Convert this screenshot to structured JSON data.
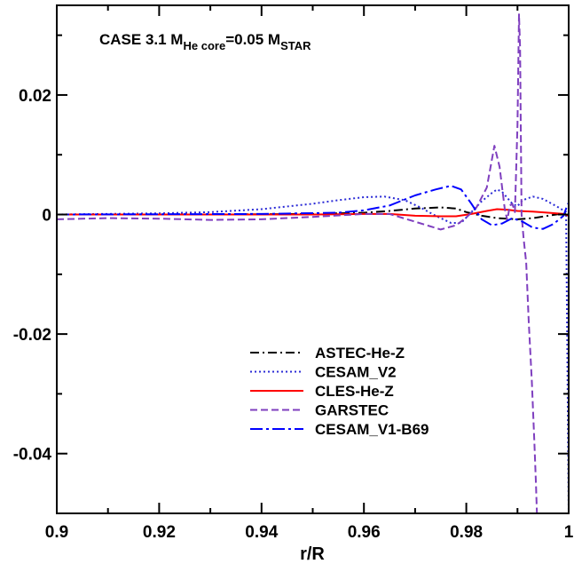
{
  "chart_data": {
    "type": "line",
    "title": {
      "prefix": "CASE 3.1 M",
      "sub1": "He core",
      "mid": "=0.05 M",
      "sub2": "STAR"
    },
    "xlabel": "r/R",
    "ylabel": "",
    "xlim": [
      0.9,
      1.0
    ],
    "ylim": [
      -0.05,
      0.035
    ],
    "x_ticks": [
      0.9,
      0.92,
      0.94,
      0.96,
      0.98,
      1.0
    ],
    "x_tick_labels": [
      "0.9",
      "0.92",
      "0.94",
      "0.96",
      "0.98",
      "1"
    ],
    "y_ticks": [
      -0.04,
      -0.02,
      0,
      0.02
    ],
    "y_tick_labels": [
      "-0.04",
      "-0.02",
      "0",
      "0.02"
    ],
    "legend_position": "lower-center",
    "series": [
      {
        "name": "ASTEC-He-Z",
        "color": "#000000",
        "dash": "dash-dot",
        "points": [
          [
            0.9,
            0
          ],
          [
            0.93,
            0
          ],
          [
            0.95,
            0.0001
          ],
          [
            0.96,
            0.0003
          ],
          [
            0.965,
            0.0006
          ],
          [
            0.97,
            0.001
          ],
          [
            0.975,
            0.0012
          ],
          [
            0.978,
            0.001
          ],
          [
            0.98,
            0.0004
          ],
          [
            0.983,
            -0.0002
          ],
          [
            0.986,
            -0.0006
          ],
          [
            0.99,
            -0.0008
          ],
          [
            0.993,
            -0.0006
          ],
          [
            0.996,
            -0.0002
          ],
          [
            0.999,
            0.0002
          ],
          [
            1.0,
            0.0003
          ]
        ]
      },
      {
        "name": "CESAM_V2",
        "color": "#2b2bd6",
        "dash": "dotted",
        "points": [
          [
            0.9,
            0
          ],
          [
            0.92,
            0.0002
          ],
          [
            0.93,
            0.0004
          ],
          [
            0.94,
            0.0009
          ],
          [
            0.95,
            0.0018
          ],
          [
            0.955,
            0.0024
          ],
          [
            0.96,
            0.0029
          ],
          [
            0.964,
            0.003
          ],
          [
            0.968,
            0.0024
          ],
          [
            0.971,
            0.0012
          ],
          [
            0.974,
            -0.0002
          ],
          [
            0.977,
            -0.0014
          ],
          [
            0.979,
            -0.0014
          ],
          [
            0.981,
            0.0004
          ],
          [
            0.983,
            0.0022
          ],
          [
            0.985,
            0.0036
          ],
          [
            0.986,
            0.0042
          ],
          [
            0.987,
            0.0038
          ],
          [
            0.989,
            0.0018
          ],
          [
            0.99,
            0.0014
          ],
          [
            0.991,
            0.0024
          ],
          [
            0.993,
            0.003
          ],
          [
            0.995,
            0.0026
          ],
          [
            0.998,
            0.0012
          ],
          [
            0.9995,
            0.0004
          ],
          [
            1.0,
            -0.05
          ]
        ]
      },
      {
        "name": "CLES-He-Z",
        "color": "#ff0000",
        "dash": "solid",
        "points": [
          [
            0.9,
            0
          ],
          [
            0.93,
            0
          ],
          [
            0.95,
            0
          ],
          [
            0.96,
            0.0001
          ],
          [
            0.965,
            0.0001
          ],
          [
            0.97,
            -0.0002
          ],
          [
            0.975,
            -0.0003
          ],
          [
            0.978,
            -0.0003
          ],
          [
            0.981,
            0.0001
          ],
          [
            0.984,
            0.0006
          ],
          [
            0.986,
            0.0009
          ],
          [
            0.988,
            0.0008
          ],
          [
            0.99,
            0.0006
          ],
          [
            0.993,
            0.0005
          ],
          [
            0.996,
            0.0003
          ],
          [
            0.999,
            0.0001
          ],
          [
            1.0,
            -0.0002
          ]
        ]
      },
      {
        "name": "GARSTEC",
        "color": "#7f3fbf",
        "dash": "dashed",
        "points": [
          [
            0.9,
            -0.0008
          ],
          [
            0.91,
            -0.0006
          ],
          [
            0.92,
            -0.0007
          ],
          [
            0.93,
            -0.0009
          ],
          [
            0.94,
            -0.0008
          ],
          [
            0.95,
            -0.0004
          ],
          [
            0.96,
            0.0001
          ],
          [
            0.965,
            0.0001
          ],
          [
            0.97,
            -0.0012
          ],
          [
            0.975,
            -0.0025
          ],
          [
            0.978,
            -0.0018
          ],
          [
            0.98,
            -0.0005
          ],
          [
            0.982,
            0.0012
          ],
          [
            0.984,
            0.0045
          ],
          [
            0.9855,
            0.0115
          ],
          [
            0.9865,
            0.008
          ],
          [
            0.9875,
            0.001
          ],
          [
            0.988,
            -0.001
          ],
          [
            0.9885,
            0.0015
          ],
          [
            0.989,
            0.0018
          ],
          [
            0.9895,
            0.0004
          ],
          [
            0.99,
            0.015
          ],
          [
            0.9903,
            0.0335
          ],
          [
            0.9905,
            0.028
          ],
          [
            0.9908,
            0.0
          ],
          [
            0.9912,
            -0.004
          ],
          [
            0.9917,
            -0.008
          ],
          [
            0.9922,
            -0.018
          ],
          [
            0.9928,
            -0.028
          ],
          [
            0.9933,
            -0.038
          ],
          [
            0.9936,
            -0.045
          ],
          [
            0.9938,
            -0.05
          ]
        ]
      },
      {
        "name": "CESAM_V1-B69",
        "color": "#0000ff",
        "dash": "long-dash-dot",
        "points": [
          [
            0.9,
            0
          ],
          [
            0.94,
            0.0001
          ],
          [
            0.955,
            0.0003
          ],
          [
            0.96,
            0.0007
          ],
          [
            0.965,
            0.0015
          ],
          [
            0.97,
            0.0032
          ],
          [
            0.974,
            0.0042
          ],
          [
            0.977,
            0.0048
          ],
          [
            0.979,
            0.0042
          ],
          [
            0.981,
            0.0018
          ],
          [
            0.983,
            -0.0008
          ],
          [
            0.985,
            -0.0018
          ],
          [
            0.987,
            -0.0015
          ],
          [
            0.989,
            -0.0006
          ],
          [
            0.991,
            -0.0012
          ],
          [
            0.993,
            -0.0022
          ],
          [
            0.995,
            -0.0024
          ],
          [
            0.997,
            -0.0016
          ],
          [
            0.999,
            -0.0002
          ],
          [
            0.9995,
            0.001
          ],
          [
            1.0,
            0.002
          ]
        ]
      }
    ]
  }
}
